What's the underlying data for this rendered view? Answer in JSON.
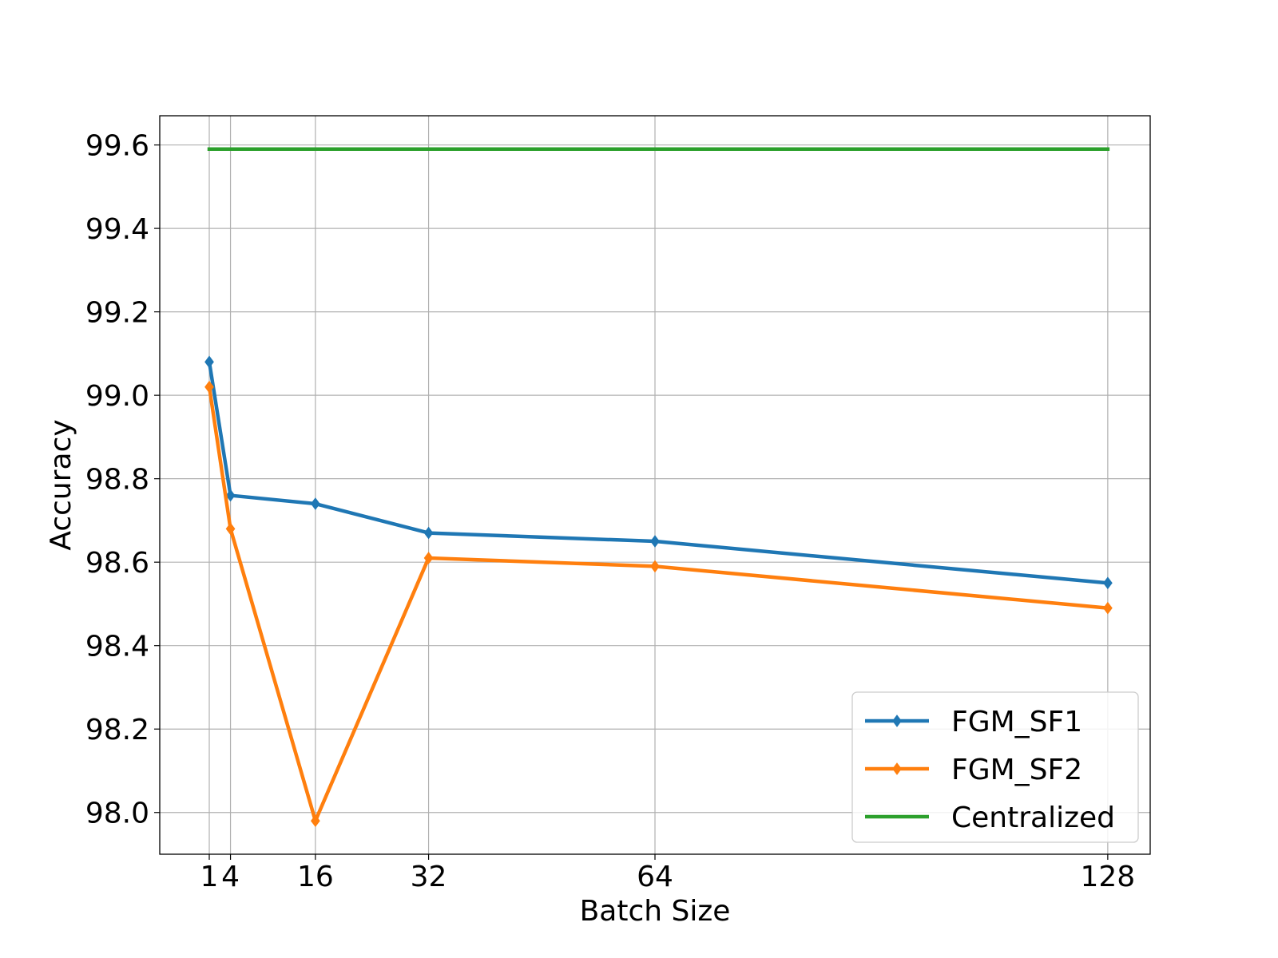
{
  "chart_data": {
    "type": "line",
    "xlabel": "Batch Size",
    "ylabel": "Accuracy",
    "x_ticks": [
      {
        "value": 1,
        "label": "1"
      },
      {
        "value": 4,
        "label": "4"
      },
      {
        "value": 16,
        "label": "16"
      },
      {
        "value": 32,
        "label": "32"
      },
      {
        "value": 64,
        "label": "64"
      },
      {
        "value": 128,
        "label": "128"
      }
    ],
    "y_ticks": [
      "98.0",
      "98.2",
      "98.4",
      "98.6",
      "98.8",
      "99.0",
      "99.2",
      "99.4",
      "99.6"
    ],
    "xlim": [
      -6,
      134
    ],
    "ylim": [
      97.9,
      99.67
    ],
    "grid": true,
    "legend_position": "lower-right",
    "series": [
      {
        "name": "FGM_SF1",
        "color": "#1f77b4",
        "marker": "diamond",
        "x": [
          1,
          4,
          16,
          32,
          64,
          128
        ],
        "y": [
          99.08,
          98.76,
          98.74,
          98.67,
          98.65,
          98.55
        ]
      },
      {
        "name": "FGM_SF2",
        "color": "#ff7f0e",
        "marker": "diamond",
        "x": [
          1,
          4,
          16,
          32,
          64,
          128
        ],
        "y": [
          99.02,
          98.68,
          97.98,
          98.61,
          98.59,
          98.49
        ]
      },
      {
        "name": "Centralized",
        "color": "#2ca02c",
        "marker": "none",
        "x": [
          1,
          128
        ],
        "y": [
          99.59,
          99.59
        ]
      }
    ]
  }
}
